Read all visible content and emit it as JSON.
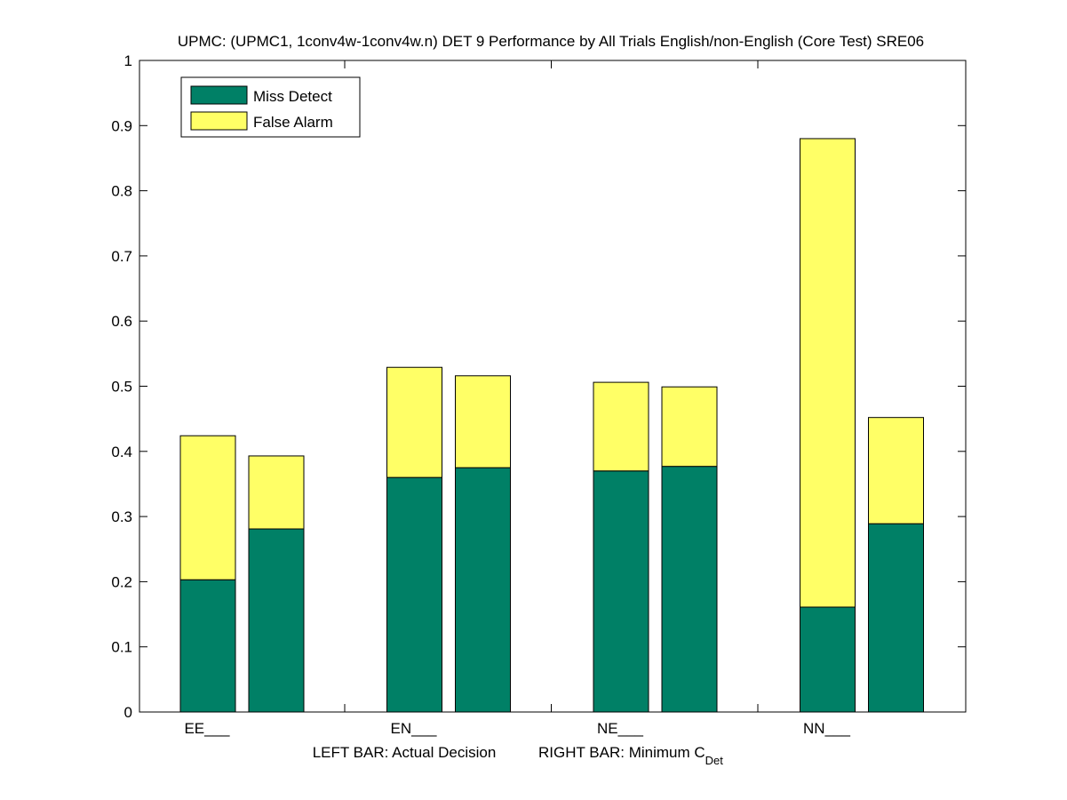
{
  "chart_data": {
    "type": "bar",
    "stacked": true,
    "title": "UPMC: (UPMC1, 1conv4w-1conv4w.n) DET 9 Performance by All Trials English/non-English (Core Test) SRE06",
    "xlabel_left": "LEFT BAR: Actual Decision",
    "xlabel_right": "RIGHT BAR: Minimum C",
    "xlabel_right_sub": "Det",
    "categories": [
      "EE___",
      "EN___",
      "NE___",
      "NN___"
    ],
    "ylim": [
      0,
      1
    ],
    "yticks": [
      "0",
      "0.1",
      "0.2",
      "0.3",
      "0.4",
      "0.5",
      "0.6",
      "0.7",
      "0.8",
      "0.9",
      "1"
    ],
    "legend_position": "top-left",
    "series": [
      {
        "name": "Miss Detect",
        "color": "#008066",
        "actual": [
          0.203,
          0.36,
          0.37,
          0.161
        ],
        "minimum": [
          0.281,
          0.375,
          0.377,
          0.289
        ]
      },
      {
        "name": "False Alarm",
        "color": "#ffff66",
        "actual": [
          0.221,
          0.169,
          0.136,
          0.719
        ],
        "minimum": [
          0.112,
          0.141,
          0.122,
          0.163
        ]
      }
    ]
  }
}
